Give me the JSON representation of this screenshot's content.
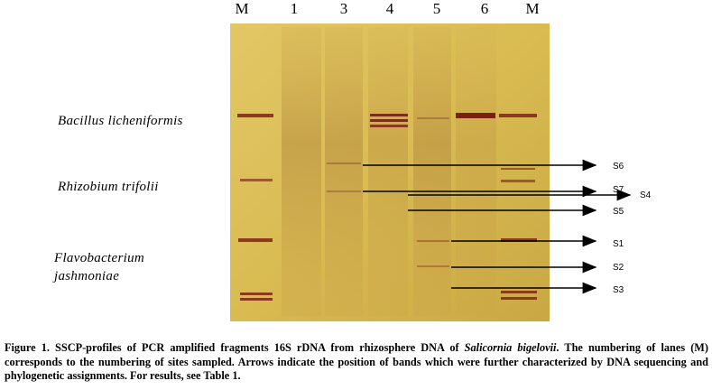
{
  "lanes": [
    "M",
    "1",
    "3",
    "4",
    "5",
    "6",
    "M"
  ],
  "species": [
    {
      "text": "Bacillus licheniformis"
    },
    {
      "text": "Rhizobium trifolii"
    },
    {
      "text": "Flavobacterium"
    },
    {
      "text": "jashmoniae"
    }
  ],
  "arrows": [
    "S6",
    "S7",
    "S4",
    "S5",
    "S1",
    "S2",
    "S3"
  ],
  "caption": {
    "part1": "Figure 1. SSCP-profiles of PCR amplified fragments 16S rDNA from rhizosphere DNA of ",
    "species": "Salicornia bigelovii",
    "part2": ". The numbering of lanes (M) corresponds to the numbering of sites sampled. Arrows indicate the position of bands which were further characterized by DNA sequencing and phylogenetic assignments. For results, see Table 1."
  },
  "colors": {
    "gel": "#d4b64a",
    "band": "#8b3a1e",
    "arrow": "#000000"
  }
}
